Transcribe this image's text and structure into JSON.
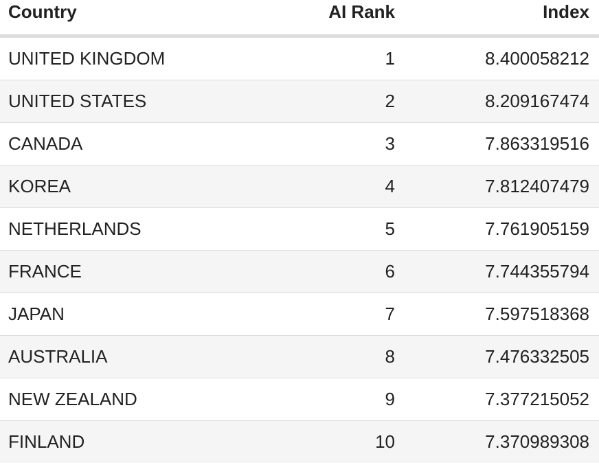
{
  "table": {
    "header": [
      "Country",
      "AI Rank",
      "Index"
    ],
    "rows": [
      [
        "UNITED KINGDOM",
        1,
        8.400058212
      ],
      [
        "UNITED STATES",
        2,
        8.209167474
      ],
      [
        "CANADA",
        3,
        7.863319516
      ],
      [
        "KOREA",
        4,
        7.812407479
      ],
      [
        "NETHERLANDS",
        5,
        7.761905159
      ],
      [
        "FRANCE",
        6,
        7.744355794
      ],
      [
        "JAPAN",
        7,
        7.597518368
      ],
      [
        "AUSTRALIA",
        8,
        7.476332505
      ],
      [
        "NEW ZEALAND",
        9,
        7.377215052
      ],
      [
        "FINLAND",
        10,
        7.370989308
      ]
    ]
  }
}
